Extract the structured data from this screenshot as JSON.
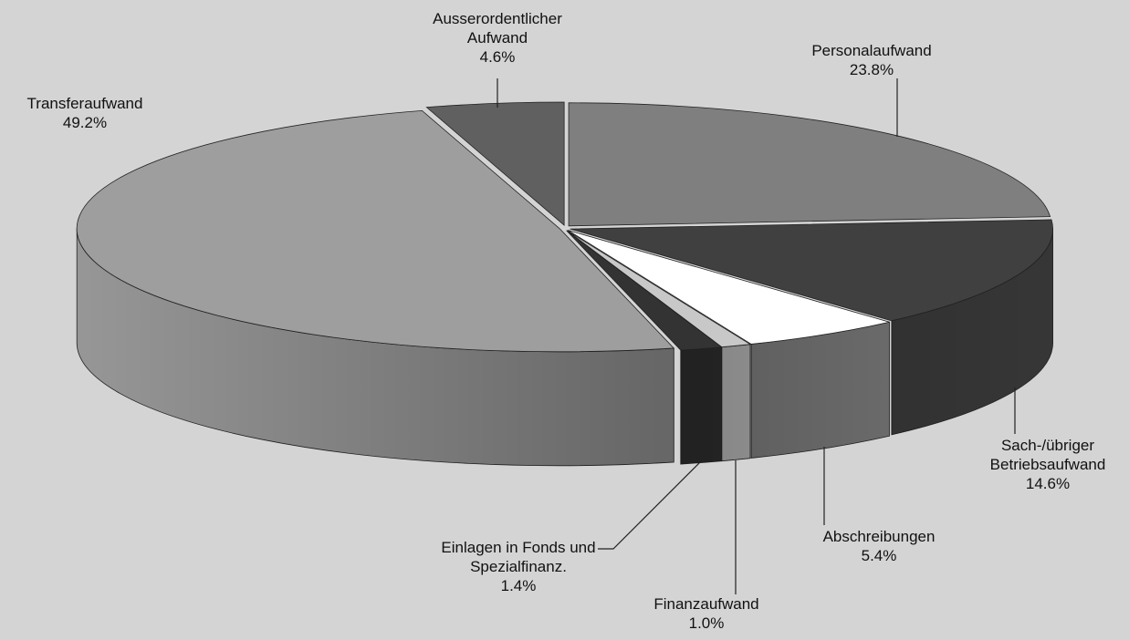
{
  "chart_data": {
    "type": "pie3d",
    "categories": [
      "Personalaufwand",
      "Sach-/übriger Betriebsaufwand",
      "Abschreibungen",
      "Finanzaufwand",
      "Einlagen in Fonds und Spezialfinanz.",
      "Transferaufwand",
      "Ausserordentlicher Aufwand"
    ],
    "values": [
      23.8,
      14.6,
      5.4,
      1.0,
      1.4,
      49.2,
      4.6
    ],
    "value_labels": [
      "23.8%",
      "14.6%",
      "5.4%",
      "1.0%",
      "1.4%",
      "49.2%",
      "4.6%"
    ],
    "colors": [
      "#7f7f7f",
      "#404040",
      "#ffffff",
      "#c8c8c8",
      "#333333",
      "#9e9e9e",
      "#606060"
    ]
  }
}
